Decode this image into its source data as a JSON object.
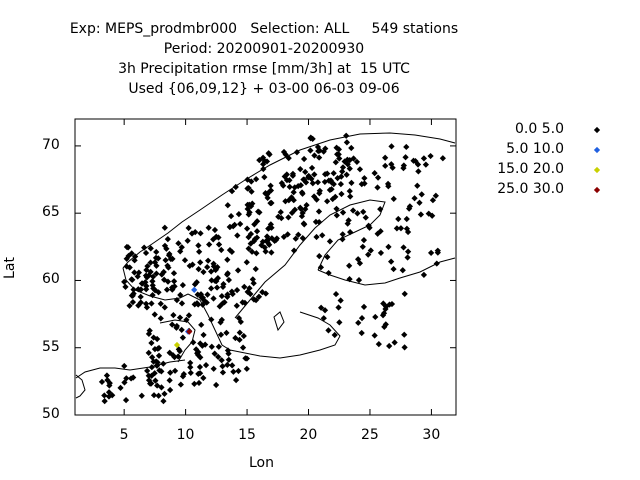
{
  "header": {
    "line1": "Exp: MEPS_prodmbr000   Selection: ALL     549 stations",
    "line2": "Period: 20200901-20200930",
    "line3": "3h Precipitation rmse [mm/3h] at  15 UTC",
    "line4": "Used {06,09,12} + 03-00 06-03 09-06"
  },
  "chart_data": {
    "type": "scatter",
    "xlabel": "Lon",
    "ylabel": "Lat",
    "xlim": [
      1,
      32
    ],
    "ylim": [
      50,
      72
    ],
    "xticks": [
      5,
      10,
      15,
      20,
      25,
      30
    ],
    "yticks": [
      50,
      55,
      60,
      65,
      70
    ],
    "legend_position": "right",
    "series": [
      {
        "name": "0.0 5.0",
        "color": "#000000",
        "points": []
      },
      {
        "name": "5.0 10.0",
        "color": "#2060e0",
        "points": [
          [
            10.7,
            59.3
          ],
          [
            10.2,
            56.2
          ]
        ]
      },
      {
        "name": "15.0 20.0",
        "color": "#c8d000",
        "points": [
          [
            9.3,
            55.2
          ]
        ]
      },
      {
        "name": "25.0 30.0",
        "color": "#8b0000",
        "points": [
          [
            10.3,
            56.2
          ]
        ]
      }
    ]
  }
}
